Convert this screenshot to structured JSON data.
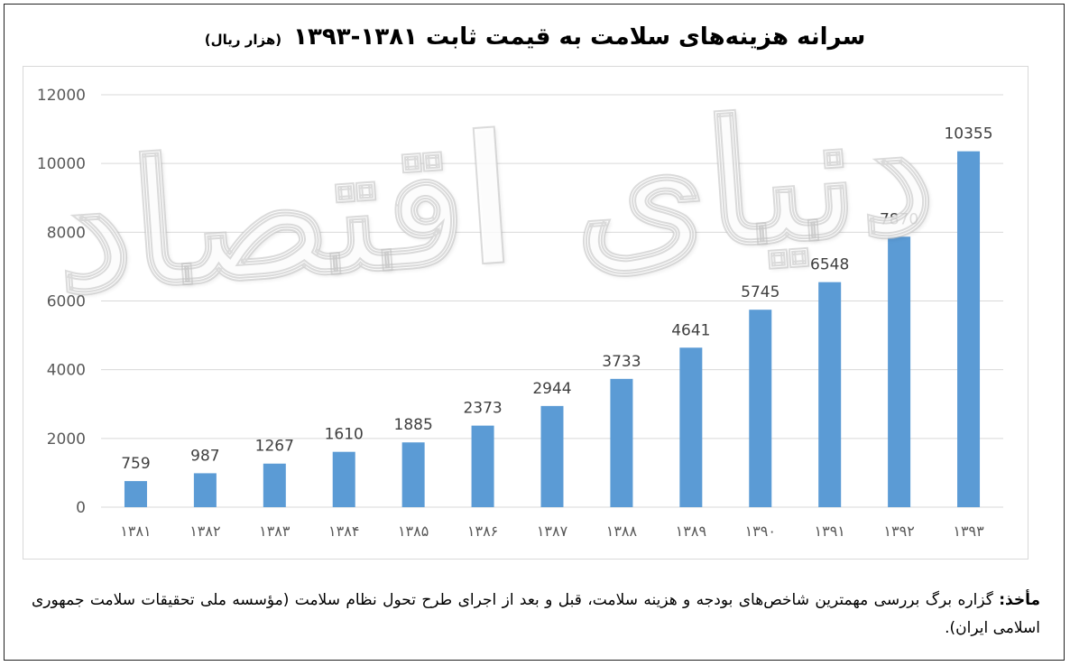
{
  "chart_data": {
    "type": "bar",
    "title": "سرانه هزینه‌های سلامت به قیمت ثابت ۱۳۸۱-۱۳۹۳",
    "title_unit": "(هزار ریال)",
    "categories": [
      "۱۳۸۱",
      "۱۳۸۲",
      "۱۳۸۳",
      "۱۳۸۴",
      "۱۳۸۵",
      "۱۳۸۶",
      "۱۳۸۷",
      "۱۳۸۸",
      "۱۳۸۹",
      "۱۳۹۰",
      "۱۳۹۱",
      "۱۳۹۲",
      "۱۳۹۳"
    ],
    "values": [
      759,
      987,
      1267,
      1610,
      1885,
      2373,
      2944,
      3733,
      4641,
      5745,
      6548,
      7870,
      10355
    ],
    "data_labels": [
      "759",
      "987",
      "1267",
      "1610",
      "1885",
      "2373",
      "2944",
      "3733",
      "4641",
      "5745",
      "6548",
      "7870",
      "10355"
    ],
    "y_ticks": [
      "0",
      "2000",
      "4000",
      "6000",
      "8000",
      "10000",
      "12000"
    ],
    "ylim": [
      0,
      12000
    ],
    "grid": true,
    "legend": "none",
    "bar_color": "#5b9bd5"
  },
  "watermark": "دنیای اقتصاد",
  "source": {
    "label": "مأخذ:",
    "text": "گزاره برگ بررسی مهمترین شاخص‌های بودجه و هزینه سلامت، قبل و بعد از اجرای طرح تحول نظام سلامت (مؤسسه ملی تحقیقات سلامت جمهوری اسلامی ایران)."
  }
}
